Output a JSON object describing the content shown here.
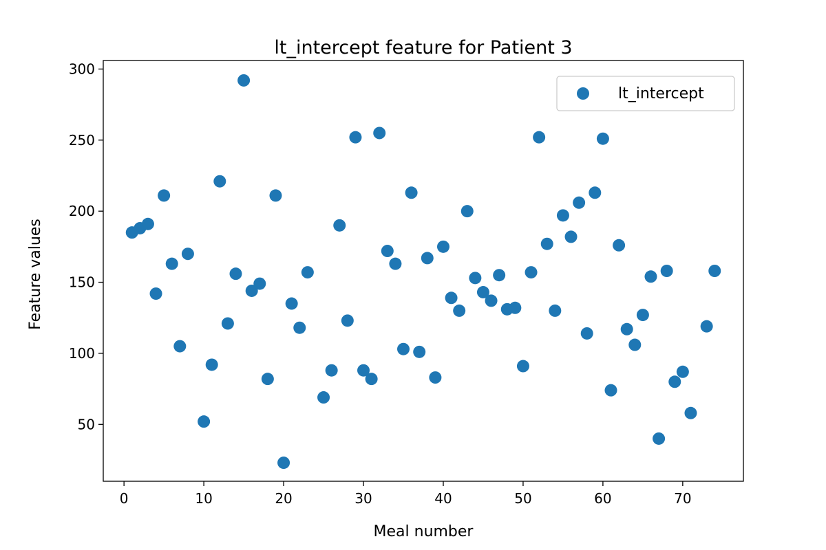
{
  "chart_data": {
    "type": "scatter",
    "title": "lt_intercept feature for Patient 3",
    "xlabel": "Meal number",
    "ylabel": "Feature values",
    "xlim": [
      -2.6,
      77.6
    ],
    "ylim": [
      10,
      306
    ],
    "xticks": [
      0,
      10,
      20,
      30,
      40,
      50,
      60,
      70
    ],
    "yticks": [
      50,
      100,
      150,
      200,
      250,
      300
    ],
    "grid": false,
    "legend_position": "top-right",
    "series": [
      {
        "name": "lt_intercept",
        "color": "#1f77b4",
        "points": [
          [
            1,
            185
          ],
          [
            2,
            188
          ],
          [
            3,
            191
          ],
          [
            4,
            142
          ],
          [
            5,
            211
          ],
          [
            6,
            163
          ],
          [
            7,
            105
          ],
          [
            8,
            170
          ],
          [
            10,
            52
          ],
          [
            11,
            92
          ],
          [
            12,
            221
          ],
          [
            13,
            121
          ],
          [
            14,
            156
          ],
          [
            15,
            292
          ],
          [
            16,
            144
          ],
          [
            17,
            149
          ],
          [
            18,
            82
          ],
          [
            19,
            211
          ],
          [
            20,
            23
          ],
          [
            21,
            135
          ],
          [
            22,
            118
          ],
          [
            23,
            157
          ],
          [
            25,
            69
          ],
          [
            26,
            88
          ],
          [
            27,
            190
          ],
          [
            28,
            123
          ],
          [
            29,
            252
          ],
          [
            30,
            88
          ],
          [
            31,
            82
          ],
          [
            32,
            255
          ],
          [
            33,
            172
          ],
          [
            34,
            163
          ],
          [
            35,
            103
          ],
          [
            36,
            213
          ],
          [
            37,
            101
          ],
          [
            38,
            167
          ],
          [
            39,
            83
          ],
          [
            40,
            175
          ],
          [
            41,
            139
          ],
          [
            42,
            130
          ],
          [
            43,
            200
          ],
          [
            44,
            153
          ],
          [
            45,
            143
          ],
          [
            46,
            137
          ],
          [
            47,
            155
          ],
          [
            48,
            131
          ],
          [
            49,
            132
          ],
          [
            50,
            91
          ],
          [
            51,
            157
          ],
          [
            52,
            252
          ],
          [
            53,
            177
          ],
          [
            54,
            130
          ],
          [
            55,
            197
          ],
          [
            56,
            182
          ],
          [
            57,
            206
          ],
          [
            58,
            114
          ],
          [
            59,
            213
          ],
          [
            60,
            251
          ],
          [
            61,
            74
          ],
          [
            62,
            176
          ],
          [
            63,
            117
          ],
          [
            64,
            106
          ],
          [
            65,
            127
          ],
          [
            66,
            154
          ],
          [
            67,
            40
          ],
          [
            68,
            158
          ],
          [
            69,
            80
          ],
          [
            70,
            87
          ],
          [
            71,
            58
          ],
          [
            73,
            119
          ],
          [
            74,
            158
          ]
        ]
      }
    ]
  }
}
